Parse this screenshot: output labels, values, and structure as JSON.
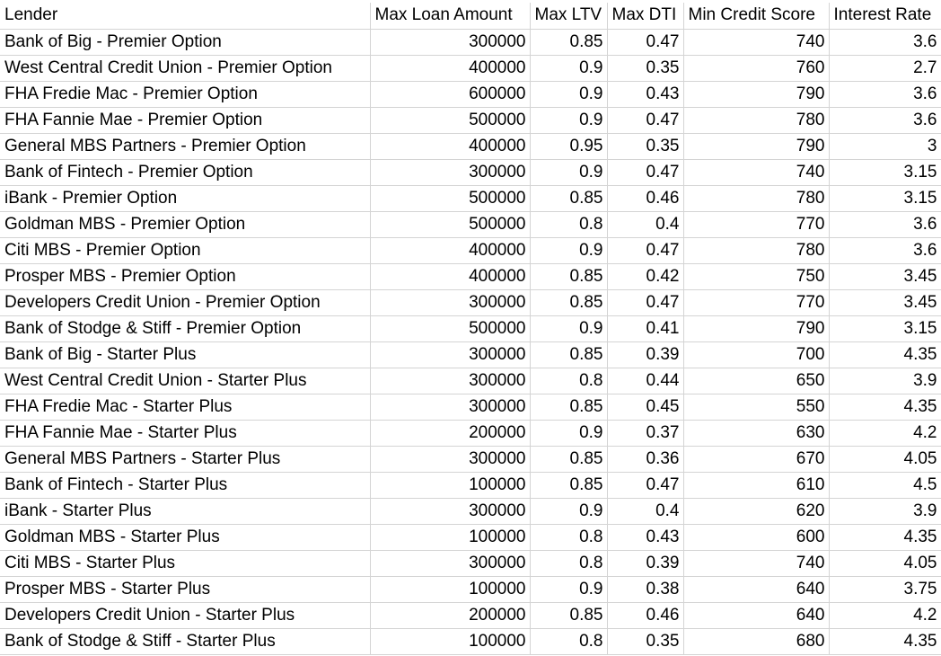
{
  "headers": [
    "Lender",
    "Max Loan Amount",
    "Max LTV",
    "Max DTI",
    "Min Credit Score",
    "Interest Rate"
  ],
  "rows": [
    [
      "Bank of Big - Premier Option",
      "300000",
      "0.85",
      "0.47",
      "740",
      "3.6"
    ],
    [
      "West Central Credit Union - Premier Option",
      "400000",
      "0.9",
      "0.35",
      "760",
      "2.7"
    ],
    [
      "FHA Fredie Mac - Premier Option",
      "600000",
      "0.9",
      "0.43",
      "790",
      "3.6"
    ],
    [
      "FHA Fannie Mae - Premier Option",
      "500000",
      "0.9",
      "0.47",
      "780",
      "3.6"
    ],
    [
      "General MBS Partners - Premier Option",
      "400000",
      "0.95",
      "0.35",
      "790",
      "3"
    ],
    [
      "Bank of Fintech - Premier Option",
      "300000",
      "0.9",
      "0.47",
      "740",
      "3.15"
    ],
    [
      "iBank - Premier Option",
      "500000",
      "0.85",
      "0.46",
      "780",
      "3.15"
    ],
    [
      "Goldman MBS - Premier Option",
      "500000",
      "0.8",
      "0.4",
      "770",
      "3.6"
    ],
    [
      "Citi MBS - Premier Option",
      "400000",
      "0.9",
      "0.47",
      "780",
      "3.6"
    ],
    [
      "Prosper MBS - Premier Option",
      "400000",
      "0.85",
      "0.42",
      "750",
      "3.45"
    ],
    [
      "Developers Credit Union - Premier Option",
      "300000",
      "0.85",
      "0.47",
      "770",
      "3.45"
    ],
    [
      "Bank of Stodge & Stiff - Premier Option",
      "500000",
      "0.9",
      "0.41",
      "790",
      "3.15"
    ],
    [
      "Bank of Big - Starter Plus",
      "300000",
      "0.85",
      "0.39",
      "700",
      "4.35"
    ],
    [
      "West Central Credit Union - Starter Plus",
      "300000",
      "0.8",
      "0.44",
      "650",
      "3.9"
    ],
    [
      "FHA Fredie Mac - Starter Plus",
      "300000",
      "0.85",
      "0.45",
      "550",
      "4.35"
    ],
    [
      "FHA Fannie Mae - Starter Plus",
      "200000",
      "0.9",
      "0.37",
      "630",
      "4.2"
    ],
    [
      "General MBS Partners - Starter Plus",
      "300000",
      "0.85",
      "0.36",
      "670",
      "4.05"
    ],
    [
      "Bank of Fintech - Starter Plus",
      "100000",
      "0.85",
      "0.47",
      "610",
      "4.5"
    ],
    [
      "iBank - Starter Plus",
      "300000",
      "0.9",
      "0.4",
      "620",
      "3.9"
    ],
    [
      "Goldman MBS - Starter Plus",
      "100000",
      "0.8",
      "0.43",
      "600",
      "4.35"
    ],
    [
      "Citi MBS - Starter Plus",
      "300000",
      "0.8",
      "0.39",
      "740",
      "4.05"
    ],
    [
      "Prosper MBS - Starter Plus",
      "100000",
      "0.9",
      "0.38",
      "640",
      "3.75"
    ],
    [
      "Developers Credit Union - Starter Plus",
      "200000",
      "0.85",
      "0.46",
      "640",
      "4.2"
    ],
    [
      "Bank of Stodge & Stiff - Starter Plus",
      "100000",
      "0.8",
      "0.35",
      "680",
      "4.35"
    ]
  ]
}
